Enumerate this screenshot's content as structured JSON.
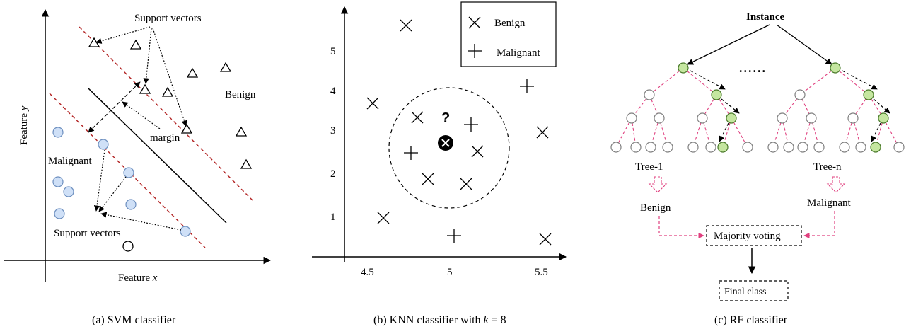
{
  "panel_a": {
    "support_vectors_top": "Support vectors",
    "support_vectors_bottom": "Support vectors",
    "benign": "Benign",
    "malignant": "Malignant",
    "margin": "margin",
    "xlabel_prefix": "Feature ",
    "xlabel_var": "x",
    "ylabel_prefix": "Feature ",
    "ylabel_var": "y",
    "caption": "(a) SVM classifier"
  },
  "panel_b": {
    "legend_benign": "Benign",
    "legend_malignant": "Malignant",
    "query_mark": "?",
    "x_ticks": [
      "4.5",
      "5",
      "5.5"
    ],
    "y_ticks": [
      "1",
      "2",
      "3",
      "4",
      "5"
    ],
    "caption_prefix": "(b) KNN classifier with ",
    "caption_k": "k",
    "caption_suffix": " = 8"
  },
  "panel_c": {
    "instance": "Instance",
    "ellipsis": "......",
    "tree_1": "Tree-1",
    "tree_n": "Tree-n",
    "vote_1": "Benign",
    "vote_n": "Malignant",
    "majority_voting": "Majority voting",
    "final_class": "Final class",
    "caption": "(c) RF classifier"
  },
  "colors": {
    "point_fill": "#cfe0f7",
    "point_stroke": "#6d8fbf",
    "margin_line": "#b22222",
    "tree_edge": "#e0407f",
    "path_node": "#c5e6a0",
    "path_node_stroke": "#4a7a2a",
    "node_stroke": "#808080"
  }
}
